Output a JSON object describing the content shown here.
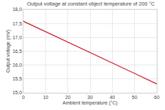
{
  "chart_data": {
    "type": "line",
    "title": "Output voltage at constant object temperature of 200 °C",
    "x_label": "Ambient temperature (°C)",
    "y_label": "Output voltage (mV)",
    "x": [
      0,
      10,
      20,
      30,
      40,
      50,
      60
    ],
    "series": [
      {
        "name": "Output voltage",
        "color": "#cc1f2d",
        "values": [
          17.58,
          17.2,
          16.83,
          16.45,
          16.07,
          15.7,
          15.32
        ]
      }
    ],
    "xlim": [
      0,
      60
    ],
    "xticks": [
      0,
      10,
      20,
      30,
      40,
      50,
      60
    ],
    "ylim": [
      15,
      18
    ],
    "yticks": [
      {
        "value": 15,
        "label": "15,0"
      },
      {
        "value": 15.5,
        "label": "15,5"
      },
      {
        "value": 16,
        "label": "16,0"
      },
      {
        "value": 16.5,
        "label": "16,5"
      },
      {
        "value": 17,
        "label": "17,0"
      },
      {
        "value": 17.5,
        "label": "17,5"
      },
      {
        "value": 18,
        "label": "18,0"
      }
    ],
    "grid": true
  }
}
